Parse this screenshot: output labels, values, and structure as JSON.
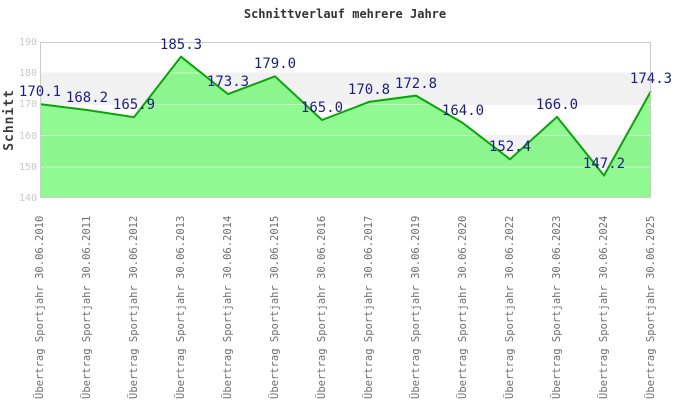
{
  "chart_data": {
    "type": "area",
    "title": "Schnittverlauf mehrere Jahre",
    "ylabel": "Schnitt",
    "xlabel": "",
    "categories": [
      "Übertrag Sportjahr 30.06.2010",
      "Übertrag Sportjahr 30.06.2011",
      "Übertrag Sportjahr 30.06.2012",
      "Übertrag Sportjahr 30.06.2013",
      "Übertrag Sportjahr 30.06.2014",
      "Übertrag Sportjahr 30.06.2015",
      "Übertrag Sportjahr 30.06.2016",
      "Übertrag Sportjahr 30.06.2017",
      "Übertrag Sportjahr 30.06.2019",
      "Übertrag Sportjahr 30.06.2020",
      "Übertrag Sportjahr 30.06.2022",
      "Übertrag Sportjahr 30.06.2023",
      "Übertrag Sportjahr 30.06.2024",
      "Übertrag Sportjahr 30.06.2025"
    ],
    "values": [
      170.1,
      168.2,
      165.9,
      185.3,
      173.3,
      179.0,
      165.0,
      170.8,
      172.8,
      164.0,
      152.4,
      166.0,
      147.2,
      174.3
    ],
    "ylim": [
      140,
      190
    ],
    "yticks": [
      190,
      180,
      170,
      160,
      150,
      140
    ],
    "legend": "none",
    "grid": "horizontal alternating bands every 10 units",
    "colors": {
      "line": "#0ba30b",
      "area": "#66f766",
      "value_label": "#1d1d80",
      "band_alt": "#f1f1f1",
      "band_base": "#ffffff",
      "gridline_under": "#e3e3e3",
      "gridline_over_fill": "rgba(255,255,255,0.55)",
      "border": "#cccccc",
      "y_tick_label": "#c9c9c9",
      "x_label": "#6f6f6f",
      "title": "#333333",
      "y_axis_title": "#3a3a3a"
    }
  }
}
